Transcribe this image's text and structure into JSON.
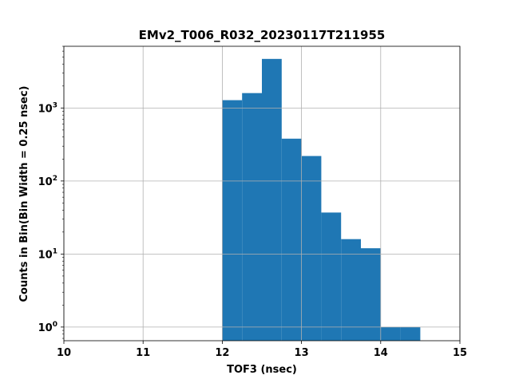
{
  "chart_data": {
    "type": "bar",
    "title": "EMv2_T006_R032_20230117T211955",
    "xlabel": "TOF3 (nsec)",
    "ylabel": "Counts in Bin(Bin Width = 0.25 nsec)",
    "xlim": [
      10,
      15
    ],
    "ylim": [
      0.65,
      7000
    ],
    "yscale": "log",
    "grid": true,
    "bar_color": "#1f77b4",
    "x_ticks": [
      10,
      11,
      12,
      13,
      14,
      15
    ],
    "x_tick_labels": [
      "10",
      "11",
      "12",
      "13",
      "14",
      "15"
    ],
    "y_ticks": [
      {
        "value": 1,
        "base": "10",
        "exp": "0"
      },
      {
        "value": 10,
        "base": "10",
        "exp": "1"
      },
      {
        "value": 100,
        "base": "10",
        "exp": "2"
      },
      {
        "value": 1000,
        "base": "10",
        "exp": "3"
      }
    ],
    "bins": [
      {
        "x0": 12.0,
        "x1": 12.25,
        "count": 1280
      },
      {
        "x0": 12.25,
        "x1": 12.5,
        "count": 1600
      },
      {
        "x0": 12.5,
        "x1": 12.75,
        "count": 4700
      },
      {
        "x0": 12.75,
        "x1": 13.0,
        "count": 380
      },
      {
        "x0": 13.0,
        "x1": 13.25,
        "count": 220
      },
      {
        "x0": 13.25,
        "x1": 13.5,
        "count": 37
      },
      {
        "x0": 13.5,
        "x1": 13.75,
        "count": 16
      },
      {
        "x0": 13.75,
        "x1": 14.0,
        "count": 12
      },
      {
        "x0": 14.0,
        "x1": 14.25,
        "count": 1
      },
      {
        "x0": 14.25,
        "x1": 14.5,
        "count": 1
      }
    ]
  }
}
